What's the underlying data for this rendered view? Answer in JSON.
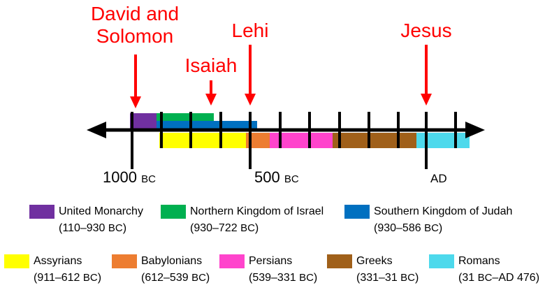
{
  "callouts": [
    {
      "id": "david-solomon",
      "lines": [
        "David and",
        "Solomon"
      ]
    },
    {
      "id": "isaiah",
      "lines": [
        "Isaiah"
      ]
    },
    {
      "id": "lehi",
      "lines": [
        "Lehi"
      ]
    },
    {
      "id": "jesus",
      "lines": [
        "Jesus"
      ]
    }
  ],
  "axis_labels": {
    "bc1000": {
      "num": "1000",
      "era": "BC"
    },
    "bc500": {
      "num": "500",
      "era": "BC"
    },
    "ad": {
      "era": "AD"
    }
  },
  "legend": [
    {
      "label": "United Monarchy",
      "range_pre": "(110–930 ",
      "range_era": "BC",
      "range_post": ")",
      "color": "#7030a0"
    },
    {
      "label": "Northern Kingdom of Israel",
      "range_pre": "(930–722 ",
      "range_era": "BC",
      "range_post": ")",
      "color": "#00b050"
    },
    {
      "label": "Southern Kingdom of Judah",
      "range_pre": "(930–586 ",
      "range_era": "BC",
      "range_post": ")",
      "color": "#0070c0"
    },
    {
      "label": "Assyrians",
      "range_pre": "(911–612 ",
      "range_era": "BC",
      "range_post": ")",
      "color": "#ffff00"
    },
    {
      "label": "Babylonians",
      "range_pre": "(612–539 ",
      "range_era": "BC",
      "range_post": ")",
      "color": "#ed7d31"
    },
    {
      "label": "Persians",
      "range_pre": "(539–331 ",
      "range_era": "BC",
      "range_post": ")",
      "color": "#ff44cc"
    },
    {
      "label": "Greeks",
      "range_pre": "(331–31 ",
      "range_era": "BC",
      "range_post": ")",
      "color": "#a0601a"
    },
    {
      "label": "Romans",
      "range_pre": "(31 ",
      "range_era": "BC",
      "range_post": "–AD 476)",
      "color": "#4dd9ec"
    }
  ],
  "colors": {
    "callout": "#ff0000",
    "axis": "#000000"
  }
}
